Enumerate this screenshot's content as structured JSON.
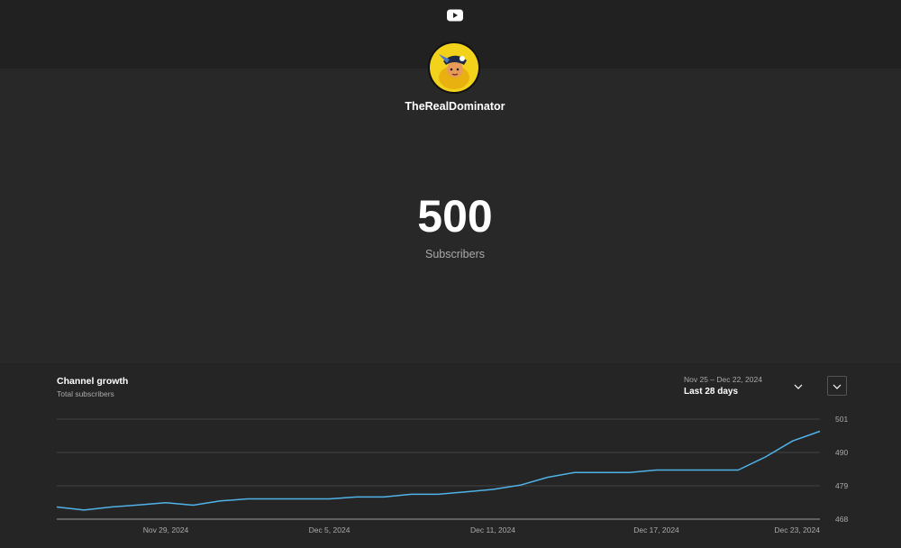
{
  "app": {
    "logo_icon": "youtube-logo-icon",
    "accent": "#ff0000"
  },
  "channel": {
    "name": "TheRealDominator",
    "avatar_icon": "channel-avatar-cartoon"
  },
  "subscribers": {
    "count": "500",
    "label": "Subscribers"
  },
  "panel": {
    "title": "Channel growth",
    "subtitle": "Total subscribers",
    "range_dates": "Nov 25 – Dec 22, 2024",
    "range_label": "Last 28 days",
    "range_icon": "chevron-down-icon",
    "expand_icon": "chevron-down-icon"
  },
  "chart_data": {
    "type": "line",
    "title": "Channel growth",
    "subtitle": "Total subscribers",
    "line_color": "#4fb3e8",
    "x": [
      "Nov 25",
      "Nov 26",
      "Nov 27",
      "Nov 28",
      "Nov 29",
      "Nov 30",
      "Dec 1",
      "Dec 2",
      "Dec 3",
      "Dec 4",
      "Dec 5",
      "Dec 6",
      "Dec 7",
      "Dec 8",
      "Dec 9",
      "Dec 10",
      "Dec 11",
      "Dec 12",
      "Dec 13",
      "Dec 14",
      "Dec 15",
      "Dec 16",
      "Dec 17",
      "Dec 18",
      "Dec 19",
      "Dec 20",
      "Dec 21",
      "Dec 22",
      "Dec 23"
    ],
    "values": [
      472,
      471,
      472,
      472.7,
      473.4,
      472.6,
      474,
      474.7,
      474.7,
      474.7,
      474.7,
      475.3,
      475.3,
      476.2,
      476.2,
      477,
      477.8,
      479.2,
      481.8,
      483.4,
      483.4,
      483.4,
      484.2,
      484.2,
      484.2,
      484.2,
      488.5,
      493.8,
      497
    ],
    "x_tick_labels": [
      "Nov 29, 2024",
      "Dec 5, 2024",
      "Dec 11, 2024",
      "Dec 17, 2024",
      "Dec 23, 2024"
    ],
    "x_tick_index": [
      4,
      10,
      16,
      22,
      28
    ],
    "y_ticks": [
      468,
      479,
      490,
      501
    ],
    "ylim": [
      468,
      501
    ],
    "grid": true
  }
}
